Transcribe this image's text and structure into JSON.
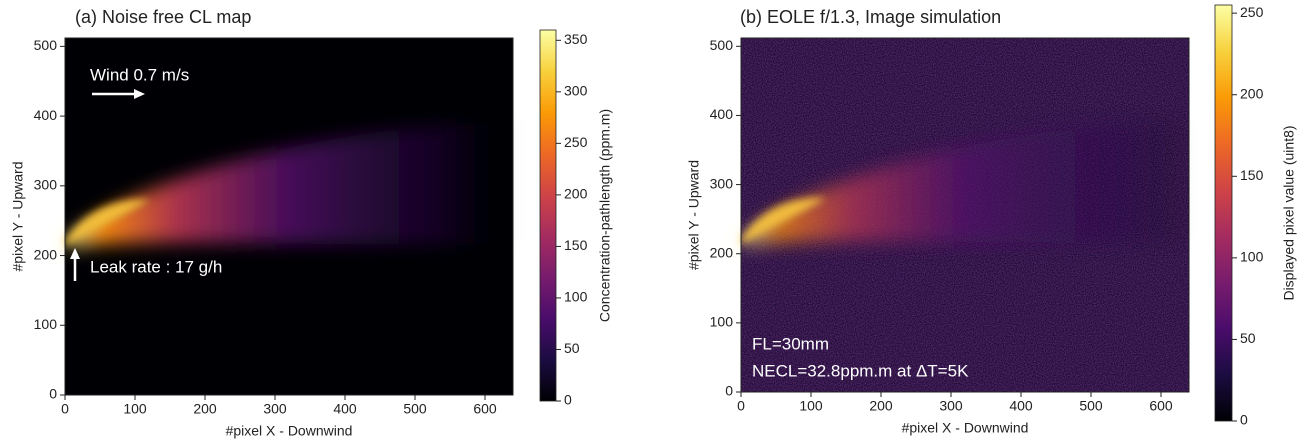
{
  "chart_data": [
    {
      "type": "image",
      "title": "(a) Noise free CL map",
      "xlabel": "#pixel X - Downwind",
      "ylabel": "#pixel Y - Upward",
      "xlim": [
        0,
        640
      ],
      "ylim": [
        0,
        512
      ],
      "xticks": [
        0,
        100,
        200,
        300,
        400,
        500,
        600
      ],
      "yticks": [
        0,
        100,
        200,
        300,
        400,
        500
      ],
      "colormap": "inferno",
      "noise": false,
      "colorbar": {
        "label": "Concentration-pathlength (ppm.m)",
        "lim": [
          0,
          360
        ],
        "ticks": [
          0,
          50,
          100,
          150,
          200,
          250,
          300,
          350
        ]
      },
      "annotations": [
        "Wind 0.7 m/s",
        "Leak rate : 17 g/h"
      ]
    },
    {
      "type": "image",
      "title": "(b) EOLE f/1.3, Image simulation",
      "xlabel": "#pixel X - Downwind",
      "ylabel": "#pixel Y - Upward",
      "xlim": [
        0,
        640
      ],
      "ylim": [
        0,
        512
      ],
      "xticks": [
        0,
        100,
        200,
        300,
        400,
        500,
        600
      ],
      "yticks": [
        0,
        100,
        200,
        300,
        400,
        500
      ],
      "colormap": "inferno",
      "noise": true,
      "colorbar": {
        "label": "Displayed pixel value (uint8)",
        "lim": [
          0,
          255
        ],
        "ticks": [
          0,
          50,
          100,
          150,
          200,
          250
        ]
      },
      "annotations": [
        "FL=30mm",
        "NECL=32.8ppm.m at ΔT=5K"
      ]
    }
  ]
}
